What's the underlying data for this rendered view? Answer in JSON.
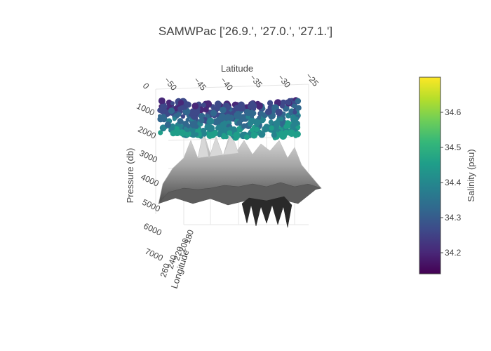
{
  "colors": {
    "background": "#ffffff",
    "text": "#444444",
    "grid": "#e5e5e5",
    "surface_light": "#d8d8d8",
    "surface_dark": "#2a2a2a",
    "colorscale": [
      "#440154",
      "#482878",
      "#3e4989",
      "#31688e",
      "#26828e",
      "#1f9e89",
      "#35b779",
      "#6ece58",
      "#b5de2b",
      "#fde725"
    ]
  },
  "chart_data": {
    "type": "scatter3d",
    "title": "SAMWPac ['26.9.', '27.0.', '27.1.']",
    "axes": {
      "x": {
        "label": "Latitude",
        "ticks": [
          "0",
          "−50",
          "−45",
          "−40",
          "−35",
          "−30",
          "−25"
        ]
      },
      "y": {
        "label": "Longitude",
        "ticks": [
          "260",
          "240",
          "220",
          "200",
          "180"
        ]
      },
      "z": {
        "label": "Pressure (db)",
        "ticks": [
          "1000",
          "2000",
          "3000",
          "4000",
          "5000",
          "6000",
          "7000"
        ],
        "reversed": true
      }
    },
    "colorbar": {
      "title": "Salinity (psu)",
      "range": [
        34.14,
        34.7
      ],
      "ticks": [
        34.2,
        34.3,
        34.4,
        34.5,
        34.6
      ],
      "tick_labels": [
        "34.2",
        "34.3",
        "34.4",
        "34.5",
        "34.6"
      ]
    },
    "series": [
      {
        "type": "surface",
        "colorscale": "greys"
      },
      {
        "type": "scatter3d",
        "color_by": "salinity"
      }
    ]
  }
}
